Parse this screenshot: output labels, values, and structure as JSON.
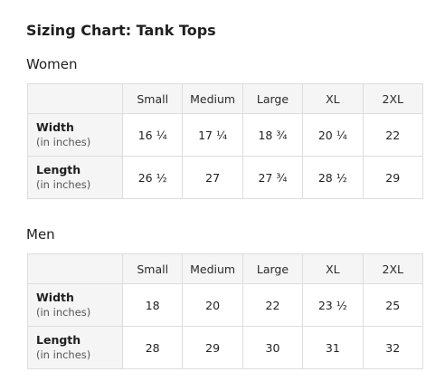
{
  "title": "Sizing Chart: Tank Tops",
  "sizes": [
    "Small",
    "Medium",
    "Large",
    "XL",
    "2XL"
  ],
  "women": {
    "heading": "Women",
    "rows": [
      {
        "name": "Width",
        "unit": "(in inches)",
        "values": [
          "16 ¼",
          "17 ¼",
          "18 ¾",
          "20 ¼",
          "22"
        ]
      },
      {
        "name": "Length",
        "unit": "(in inches)",
        "values": [
          "26 ½",
          "27",
          "27 ¾",
          "28 ½",
          "29"
        ]
      }
    ]
  },
  "men": {
    "heading": "Men",
    "rows": [
      {
        "name": "Width",
        "unit": "(in inches)",
        "values": [
          "18",
          "20",
          "22",
          "23 ½",
          "25"
        ]
      },
      {
        "name": "Length",
        "unit": "(in inches)",
        "values": [
          "28",
          "29",
          "30",
          "31",
          "32"
        ]
      }
    ]
  }
}
